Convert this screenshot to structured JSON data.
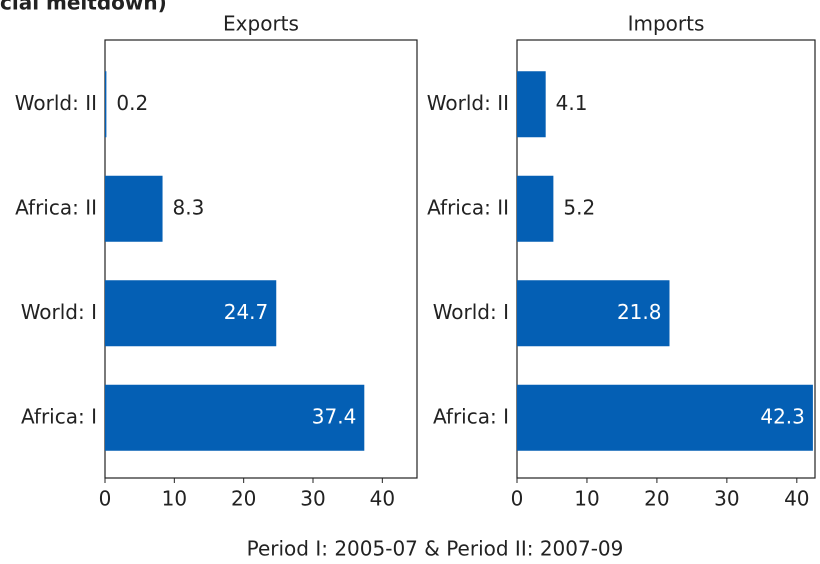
{
  "title": "cial meltdown)",
  "note": "Period I: 2005-07 & Period II: 2007-09",
  "chart_data": [
    {
      "type": "bar",
      "orientation": "horizontal",
      "title": "Exports",
      "categories": [
        "World: II",
        "Africa: II",
        "World: I",
        "Africa: I"
      ],
      "values": [
        0.2,
        8.3,
        24.7,
        37.4
      ],
      "color": "#045fb4",
      "xlim": [
        0,
        45
      ],
      "xticks": [
        0,
        10,
        20,
        30,
        40
      ]
    },
    {
      "type": "bar",
      "orientation": "horizontal",
      "title": "Imports",
      "categories": [
        "World: II",
        "Africa: II",
        "World: I",
        "Africa: I"
      ],
      "values": [
        4.1,
        5.2,
        21.8,
        42.3
      ],
      "color": "#045fb4",
      "xlim": [
        0,
        42.6
      ],
      "xticks": [
        0,
        10,
        20,
        30,
        40
      ]
    }
  ]
}
